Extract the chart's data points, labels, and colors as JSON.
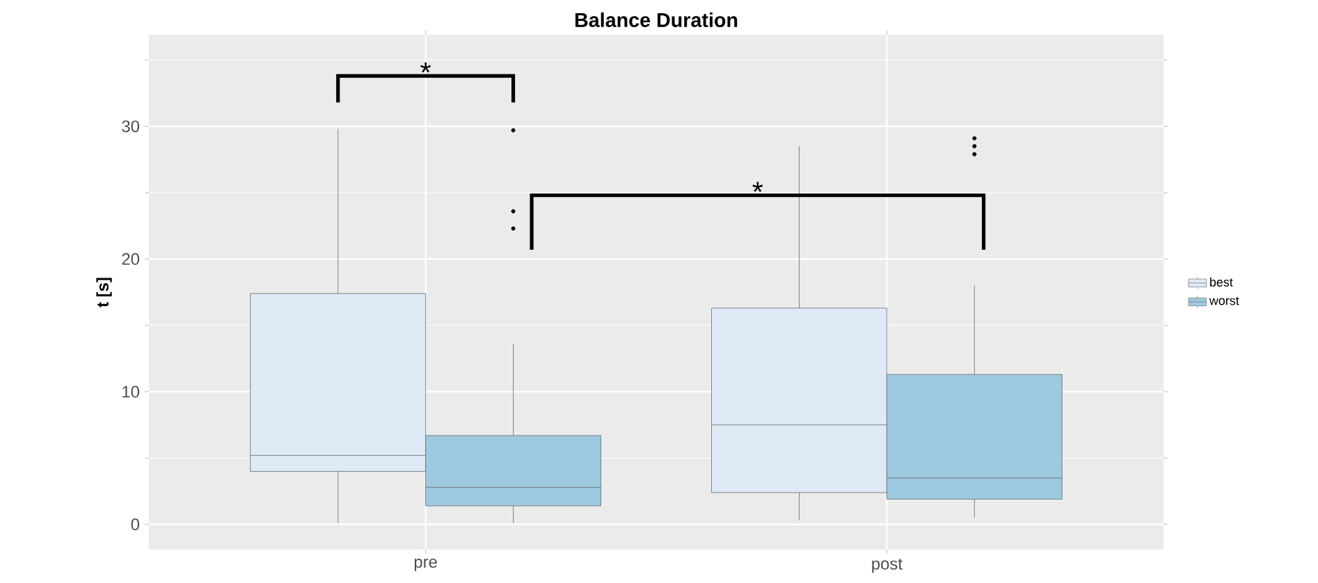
{
  "chart_data": {
    "type": "box",
    "title": "Balance Duration",
    "ylabel": "t [s]",
    "categories": [
      "pre",
      "post"
    ],
    "series": [
      {
        "name": "best",
        "color": "#deebf7",
        "boxes": [
          {
            "low": 0.1,
            "q1": 4.0,
            "median": 5.2,
            "q3": 17.4,
            "high": 29.8
          },
          {
            "low": 0.3,
            "q1": 2.4,
            "median": 7.5,
            "q3": 16.3,
            "high": 28.5
          }
        ]
      },
      {
        "name": "worst",
        "color": "#9ecae1",
        "boxes": [
          {
            "low": 0.1,
            "q1": 1.4,
            "median": 2.8,
            "q3": 6.7,
            "high": 13.6,
            "outliers": [
              29.7,
              23.6,
              22.3
            ]
          },
          {
            "low": 0.5,
            "q1": 1.9,
            "median": 3.5,
            "q3": 11.3,
            "high": 18.0,
            "outliers": [
              29.1,
              28.5,
              27.9
            ]
          }
        ]
      }
    ],
    "ylim": [
      -1.9,
      36.9
    ],
    "yticks": [
      0,
      10,
      20,
      30
    ],
    "grid": true,
    "legend": "right",
    "annotations": [
      "*",
      "*"
    ]
  }
}
